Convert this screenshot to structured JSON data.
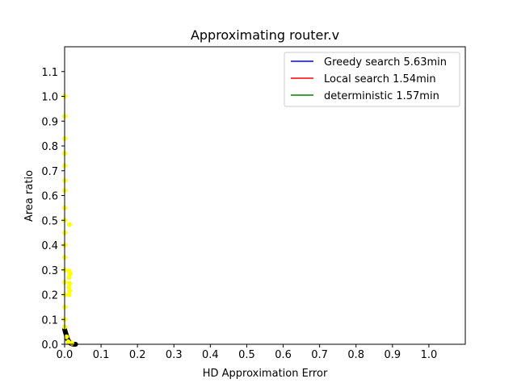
{
  "chart_data": {
    "type": "scatter",
    "title": "Approximating router.v",
    "xlabel": "HD Approximation Error",
    "ylabel": "Area ratio",
    "xlim": [
      0.0,
      1.1
    ],
    "ylim": [
      0.0,
      1.2
    ],
    "xticks": [
      "0.0",
      "0.1",
      "0.2",
      "0.3",
      "0.4",
      "0.5",
      "0.6",
      "0.7",
      "0.8",
      "0.9",
      "1.0"
    ],
    "yticks": [
      "0.0",
      "0.1",
      "0.2",
      "0.3",
      "0.4",
      "0.5",
      "0.6",
      "0.7",
      "0.8",
      "0.9",
      "1.0",
      "1.1"
    ],
    "grid": false,
    "legend_position": "top-right",
    "legend": [
      {
        "label": "Greedy search 5.63min",
        "color": "#0000ff"
      },
      {
        "label": "Local search 1.54min",
        "color": "#ff0000"
      },
      {
        "label": "deterministic 1.57min",
        "color": "#008000"
      }
    ],
    "series": [
      {
        "name": "Greedy search 5.63min",
        "color": "#0000ff",
        "kind": "line",
        "points": [
          [
            0.0,
            0.065
          ],
          [
            0.003,
            0.05
          ],
          [
            0.007,
            0.035
          ],
          [
            0.012,
            0.02
          ],
          [
            0.018,
            0.008
          ],
          [
            0.024,
            0.002
          ],
          [
            0.03,
            0.0
          ]
        ]
      },
      {
        "name": "Local search 1.54min",
        "color": "#ff0000",
        "kind": "line",
        "points": [
          [
            0.0,
            0.06
          ],
          [
            0.004,
            0.045
          ],
          [
            0.008,
            0.03
          ],
          [
            0.013,
            0.015
          ],
          [
            0.019,
            0.006
          ],
          [
            0.025,
            0.001
          ],
          [
            0.03,
            0.0
          ]
        ]
      },
      {
        "name": "deterministic 1.57min",
        "color": "#008000",
        "kind": "line",
        "points": [
          [
            0.0,
            0.063
          ],
          [
            0.004,
            0.048
          ],
          [
            0.009,
            0.032
          ],
          [
            0.014,
            0.017
          ],
          [
            0.02,
            0.007
          ],
          [
            0.026,
            0.001
          ],
          [
            0.03,
            0.0
          ]
        ]
      },
      {
        "name": "",
        "color": "#000000",
        "kind": "scatter",
        "points": [
          [
            0.0,
            0.06
          ],
          [
            0.001,
            0.055
          ],
          [
            0.002,
            0.05
          ],
          [
            0.003,
            0.045
          ],
          [
            0.004,
            0.04
          ],
          [
            0.005,
            0.035
          ],
          [
            0.006,
            0.03
          ],
          [
            0.007,
            0.025
          ],
          [
            0.008,
            0.02
          ],
          [
            0.009,
            0.018
          ],
          [
            0.01,
            0.015
          ],
          [
            0.011,
            0.012
          ],
          [
            0.012,
            0.01
          ],
          [
            0.013,
            0.008
          ],
          [
            0.014,
            0.006
          ],
          [
            0.016,
            0.005
          ],
          [
            0.018,
            0.003
          ],
          [
            0.02,
            0.002
          ],
          [
            0.022,
            0.001
          ],
          [
            0.025,
            0.0
          ],
          [
            0.028,
            0.0
          ],
          [
            0.03,
            0.0
          ]
        ]
      },
      {
        "name": "",
        "color": "#ffff00",
        "kind": "scatter",
        "points": [
          [
            0.0,
            1.0
          ],
          [
            0.0,
            0.92
          ],
          [
            0.0,
            0.83
          ],
          [
            0.0,
            0.77
          ],
          [
            0.0,
            0.72
          ],
          [
            0.0,
            0.66
          ],
          [
            0.0,
            0.62
          ],
          [
            0.0,
            0.55
          ],
          [
            0.0,
            0.5
          ],
          [
            0.0,
            0.45
          ],
          [
            0.0,
            0.4
          ],
          [
            0.0,
            0.35
          ],
          [
            0.0,
            0.3
          ],
          [
            0.0,
            0.25
          ],
          [
            0.0,
            0.2
          ],
          [
            0.0,
            0.15
          ],
          [
            0.0,
            0.1
          ],
          [
            0.0,
            0.07
          ],
          [
            0.013,
            0.483
          ],
          [
            0.012,
            0.295
          ],
          [
            0.014,
            0.285
          ],
          [
            0.012,
            0.27
          ],
          [
            0.013,
            0.245
          ],
          [
            0.012,
            0.23
          ],
          [
            0.013,
            0.215
          ],
          [
            0.012,
            0.2
          ],
          [
            0.005,
            0.03
          ],
          [
            0.01,
            0.01
          ],
          [
            0.02,
            0.004
          ]
        ]
      }
    ]
  }
}
